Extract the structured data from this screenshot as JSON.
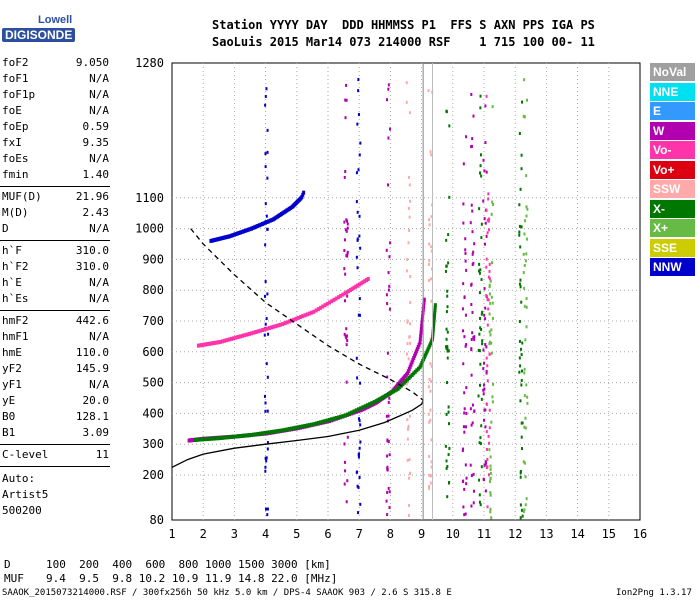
{
  "logo": {
    "line1": "Lowell",
    "line2": "DIGISONDE"
  },
  "header": {
    "row1": "Station YYYY DAY  DDD HHMMSS P1  FFS S AXN PPS IGA PS",
    "row2": "SaoLuis 2015 Mar14 073 214000 RSF    1 715 100 00- 11"
  },
  "params": {
    "group1": [
      {
        "label": "foF2",
        "value": "9.050"
      },
      {
        "label": "foF1",
        "value": "N/A"
      },
      {
        "label": "foF1p",
        "value": "N/A"
      },
      {
        "label": "foE",
        "value": "N/A"
      },
      {
        "label": "foEp",
        "value": "0.59"
      },
      {
        "label": "fxI",
        "value": "9.35"
      },
      {
        "label": "foEs",
        "value": "N/A"
      },
      {
        "label": "fmin",
        "value": "1.40"
      }
    ],
    "group2": [
      {
        "label": "MUF(D)",
        "value": "21.96"
      },
      {
        "label": "M(D)",
        "value": "2.43"
      },
      {
        "label": "D",
        "value": "N/A"
      }
    ],
    "group3": [
      {
        "label": "h`F",
        "value": "310.0"
      },
      {
        "label": "h`F2",
        "value": "310.0"
      },
      {
        "label": "h`E",
        "value": "N/A"
      },
      {
        "label": "h`Es",
        "value": "N/A"
      }
    ],
    "group4": [
      {
        "label": "hmF2",
        "value": "442.6"
      },
      {
        "label": "hmF1",
        "value": "N/A"
      },
      {
        "label": "hmE",
        "value": "110.0"
      },
      {
        "label": "yF2",
        "value": "145.9"
      },
      {
        "label": "yF1",
        "value": "N/A"
      },
      {
        "label": "yE",
        "value": "20.0"
      },
      {
        "label": "B0",
        "value": "128.1"
      },
      {
        "label": "B1",
        "value": "3.09"
      }
    ],
    "group5": [
      {
        "label": "C-level",
        "value": "11"
      }
    ],
    "auto": [
      "Auto:",
      "Artist5",
      "500200"
    ]
  },
  "legend": [
    {
      "label": "NoVal",
      "color": "#a0a0a0"
    },
    {
      "label": "NNE",
      "color": "#00e0f0"
    },
    {
      "label": "E",
      "color": "#3399ff"
    },
    {
      "label": "W",
      "color": "#b000b0"
    },
    {
      "label": "Vo-",
      "color": "#ff33aa"
    },
    {
      "label": "Vo+",
      "color": "#dd0011"
    },
    {
      "label": "SSW",
      "color": "#ffaaaa"
    },
    {
      "label": "X-",
      "color": "#007700"
    },
    {
      "label": "X+",
      "color": "#66bb44"
    },
    {
      "label": "SSE",
      "color": "#cccc00"
    },
    {
      "label": "NNW",
      "color": "#0000cc"
    }
  ],
  "footer": {
    "d_label": "D",
    "d_values": "100  200  400  600  800 1000 1500 3000 [km]",
    "muf_label": "MUF",
    "muf_values": "9.4  9.5  9.8 10.2 10.9 11.9 14.8 22.0 [MHz]",
    "file": "SAAOK_2015073214000.RSF / 300fx256h 50 kHz 5.0 km / DPS-4 SAAOK 903 / 2.6 S 315.8 E",
    "version": "Ion2Png 1.3.17"
  },
  "chart_data": {
    "type": "scatter",
    "xlim": [
      1,
      16
    ],
    "ylim": [
      80,
      1280
    ],
    "x_ticks": [
      1,
      2,
      3,
      4,
      5,
      6,
      7,
      8,
      9,
      10,
      11,
      12,
      13,
      14,
      15,
      16
    ],
    "y_ticks": [
      80,
      200,
      300,
      400,
      500,
      600,
      700,
      800,
      900,
      1000,
      1100,
      1280
    ],
    "grid": true,
    "traces": [
      {
        "name": "O-trace",
        "color": "#b000b0",
        "points": [
          [
            1.5,
            312
          ],
          [
            2,
            318
          ],
          [
            3,
            325
          ],
          [
            4,
            335
          ],
          [
            5,
            352
          ],
          [
            6,
            375
          ],
          [
            7,
            410
          ],
          [
            7.5,
            435
          ],
          [
            8,
            470
          ],
          [
            8.5,
            530
          ],
          [
            8.9,
            630
          ],
          [
            9.05,
            780
          ]
        ]
      },
      {
        "name": "X-trace",
        "color": "#007700",
        "points": [
          [
            1.7,
            314
          ],
          [
            2.5,
            320
          ],
          [
            3.5,
            330
          ],
          [
            4.5,
            345
          ],
          [
            5.5,
            365
          ],
          [
            6.5,
            393
          ],
          [
            7.5,
            440
          ],
          [
            8.2,
            480
          ],
          [
            8.9,
            550
          ],
          [
            9.3,
            640
          ],
          [
            9.4,
            760
          ]
        ]
      },
      {
        "name": "2nd hop",
        "color": "#ff33aa",
        "points": [
          [
            1.8,
            620
          ],
          [
            2.5,
            632
          ],
          [
            3.5,
            660
          ],
          [
            4.5,
            690
          ],
          [
            5.5,
            730
          ],
          [
            6.5,
            790
          ],
          [
            7.3,
            840
          ]
        ]
      },
      {
        "name": "3rd hop",
        "color": "#0000cc",
        "points": [
          [
            2.2,
            960
          ],
          [
            2.8,
            975
          ],
          [
            3.5,
            1000
          ],
          [
            4.2,
            1030
          ],
          [
            4.8,
            1070
          ],
          [
            5.2,
            1110
          ]
        ]
      }
    ],
    "profile": {
      "color": "#000",
      "points": [
        [
          1,
          225
        ],
        [
          1.5,
          250
        ],
        [
          2,
          268
        ],
        [
          3,
          287
        ],
        [
          4,
          300
        ],
        [
          5,
          312
        ],
        [
          6,
          325
        ],
        [
          7,
          345
        ],
        [
          7.8,
          370
        ],
        [
          8.3,
          392
        ],
        [
          8.7,
          410
        ],
        [
          9.0,
          430
        ],
        [
          9.05,
          443
        ]
      ]
    },
    "model": {
      "color": "#000",
      "dash": true,
      "points": [
        [
          1.6,
          1000
        ],
        [
          2,
          950
        ],
        [
          3,
          850
        ],
        [
          4,
          760
        ],
        [
          5,
          690
        ],
        [
          6,
          620
        ],
        [
          7,
          560
        ],
        [
          8,
          510
        ],
        [
          8.7,
          470
        ],
        [
          9.05,
          443
        ]
      ]
    }
  }
}
